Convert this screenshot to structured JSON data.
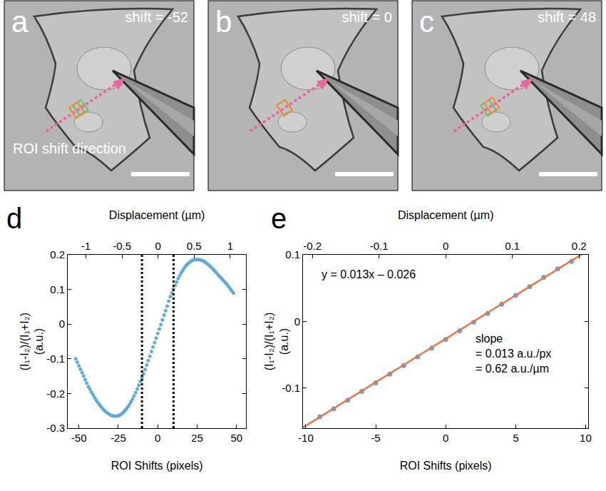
{
  "images": [
    {
      "letter": "a",
      "label": "shift = -52",
      "shift": -52,
      "note": "ROI shift direction"
    },
    {
      "letter": "b",
      "label": "shift = 0",
      "shift": 0
    },
    {
      "letter": "c",
      "label": "shift = 48",
      "shift": 48
    }
  ],
  "chart_data": [
    {
      "panel": "d",
      "type": "scatter",
      "marker": "circle",
      "color": "#62aad8",
      "xlabel": "ROI Shifts (pixels)",
      "ylabel": [
        "(I₁-I₂)/(I₁+I₂)",
        "(a.u.)"
      ],
      "x2label": "Displacement (µm)",
      "x": [
        -52,
        -51,
        -50,
        -49,
        -48,
        -47,
        -46,
        -45,
        -44,
        -43,
        -42,
        -41,
        -40,
        -39,
        -38,
        -37,
        -36,
        -35,
        -34,
        -33,
        -32,
        -31,
        -30,
        -29,
        -28,
        -27,
        -26,
        -25,
        -24,
        -23,
        -22,
        -21,
        -20,
        -19,
        -18,
        -17,
        -16,
        -15,
        -14,
        -13,
        -12,
        -11,
        -10,
        -9,
        -8,
        -7,
        -6,
        -5,
        -4,
        -3,
        -2,
        -1,
        0,
        1,
        2,
        3,
        4,
        5,
        6,
        7,
        8,
        9,
        10,
        11,
        12,
        13,
        14,
        15,
        16,
        17,
        18,
        19,
        20,
        21,
        22,
        23,
        24,
        25,
        26,
        27,
        28,
        29,
        30,
        31,
        32,
        33,
        34,
        35,
        36,
        37,
        38,
        39,
        40,
        41,
        42,
        43,
        44,
        45,
        46,
        47,
        48
      ],
      "values": [
        -0.1,
        -0.11,
        -0.12,
        -0.13,
        -0.14,
        -0.15,
        -0.16,
        -0.17,
        -0.18,
        -0.188,
        -0.196,
        -0.204,
        -0.212,
        -0.219,
        -0.226,
        -0.232,
        -0.238,
        -0.243,
        -0.248,
        -0.252,
        -0.256,
        -0.259,
        -0.262,
        -0.264,
        -0.265,
        -0.265,
        -0.265,
        -0.264,
        -0.262,
        -0.259,
        -0.255,
        -0.25,
        -0.245,
        -0.239,
        -0.232,
        -0.224,
        -0.216,
        -0.207,
        -0.197,
        -0.187,
        -0.176,
        -0.165,
        -0.154,
        -0.143,
        -0.131,
        -0.118,
        -0.105,
        -0.092,
        -0.079,
        -0.066,
        -0.053,
        -0.04,
        -0.027,
        -0.014,
        -0.001,
        0.012,
        0.026,
        0.039,
        0.052,
        0.066,
        0.079,
        0.09,
        0.101,
        0.112,
        0.122,
        0.132,
        0.141,
        0.149,
        0.156,
        0.163,
        0.169,
        0.174,
        0.178,
        0.181,
        0.184,
        0.185,
        0.186,
        0.186,
        0.186,
        0.185,
        0.184,
        0.182,
        0.179,
        0.176,
        0.172,
        0.168,
        0.164,
        0.159,
        0.154,
        0.149,
        0.144,
        0.139,
        0.134,
        0.129,
        0.124,
        0.119,
        0.114,
        0.108,
        0.102,
        0.096,
        0.09
      ],
      "xlim": [
        -57,
        56
      ],
      "xticks": [
        -50,
        -25,
        0,
        25,
        50
      ],
      "x2lim": [
        -1.25,
        1.22
      ],
      "x2ticks": [
        -1,
        -0.5,
        0,
        0.5,
        1
      ],
      "ylim": [
        -0.3,
        0.2
      ],
      "yticks": [
        -0.3,
        -0.2,
        -0.1,
        0,
        0.1,
        0.2
      ],
      "dotted_lines": [
        -10,
        10
      ],
      "grid": false
    },
    {
      "panel": "e",
      "type": "scatter",
      "marker": "circle",
      "color": "#62aad8",
      "xlabel": "ROI Shifts (pixels)",
      "ylabel": [
        "(I₁-I₂)/(I₁+I₂)",
        "(a.u.)"
      ],
      "x2label": "Displacement (µm)",
      "x": [
        -9,
        -8,
        -7,
        -6,
        -5,
        -4,
        -3,
        -2,
        -1,
        0,
        1,
        2,
        3,
        4,
        5,
        6,
        7,
        8,
        9
      ],
      "values": [
        -0.143,
        -0.131,
        -0.118,
        -0.105,
        -0.092,
        -0.079,
        -0.066,
        -0.053,
        -0.04,
        -0.027,
        -0.014,
        -0.001,
        0.012,
        0.026,
        0.039,
        0.052,
        0.066,
        0.079,
        0.09
      ],
      "fit": {
        "x": [
          -10.2,
          10.2
        ],
        "values": [
          -0.159,
          0.107
        ],
        "color": "#e8764a",
        "line_style": "solid"
      },
      "xlim": [
        -10.2,
        10.2
      ],
      "xticks": [
        -10,
        -5,
        0,
        5,
        10
      ],
      "x2lim": [
        -0.214,
        0.214
      ],
      "x2ticks": [
        -0.2,
        -0.1,
        0,
        0.1,
        0.2
      ],
      "ylim": [
        -0.16,
        0.1
      ],
      "yticks": [
        -0.1,
        0,
        0.1
      ],
      "annotations": [
        [
          "y = 0.013x – 0.026"
        ],
        [
          "slope",
          "= 0.013 a.u./px",
          "= 0.62 a.u./µm"
        ]
      ],
      "grid": false
    }
  ]
}
